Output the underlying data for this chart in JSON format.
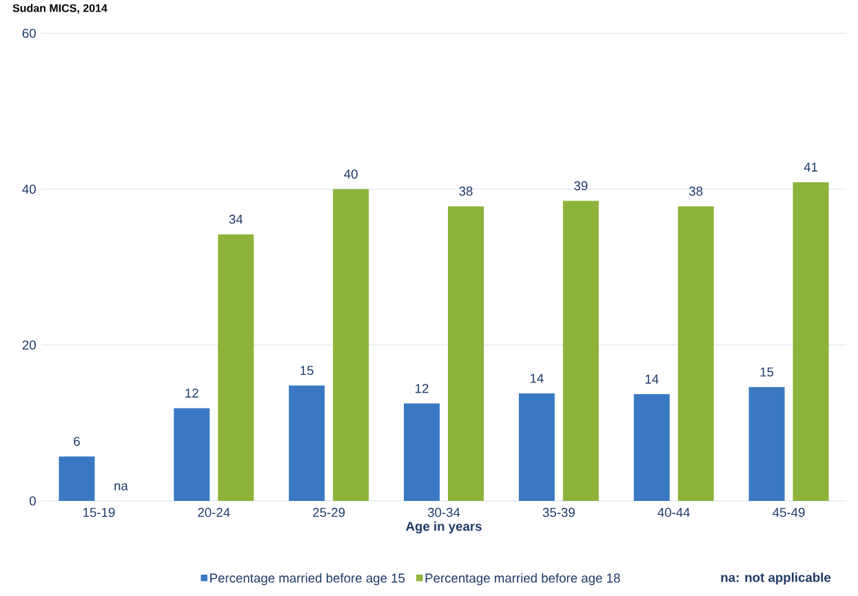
{
  "chart_data": {
    "type": "bar",
    "title": "Sudan MICS, 2014",
    "xlabel": "Age in years",
    "categories": [
      "15-19",
      "20-24",
      "25-29",
      "30-34",
      "35-39",
      "40-44",
      "45-49"
    ],
    "series": [
      {
        "name": "Percentage married before age 15",
        "color": "#3a78c4",
        "values": [
          5.7,
          11.9,
          14.8,
          12.5,
          13.8,
          13.7,
          14.6
        ],
        "value_labels": [
          "6",
          "12",
          "15",
          "12",
          "14",
          "14",
          "15"
        ]
      },
      {
        "name": "Percentage married before age 18",
        "color": "#8db33a",
        "values": [
          null,
          34.2,
          40.0,
          37.8,
          38.5,
          37.8,
          40.9
        ],
        "value_labels": [
          "na",
          "34",
          "40",
          "38",
          "39",
          "38",
          "41"
        ]
      }
    ],
    "ylim": [
      0,
      60
    ],
    "yticks": [
      0,
      20,
      40,
      60
    ],
    "grid": "y",
    "legend": "bottom",
    "annotations": [
      "na: not applicable"
    ]
  }
}
